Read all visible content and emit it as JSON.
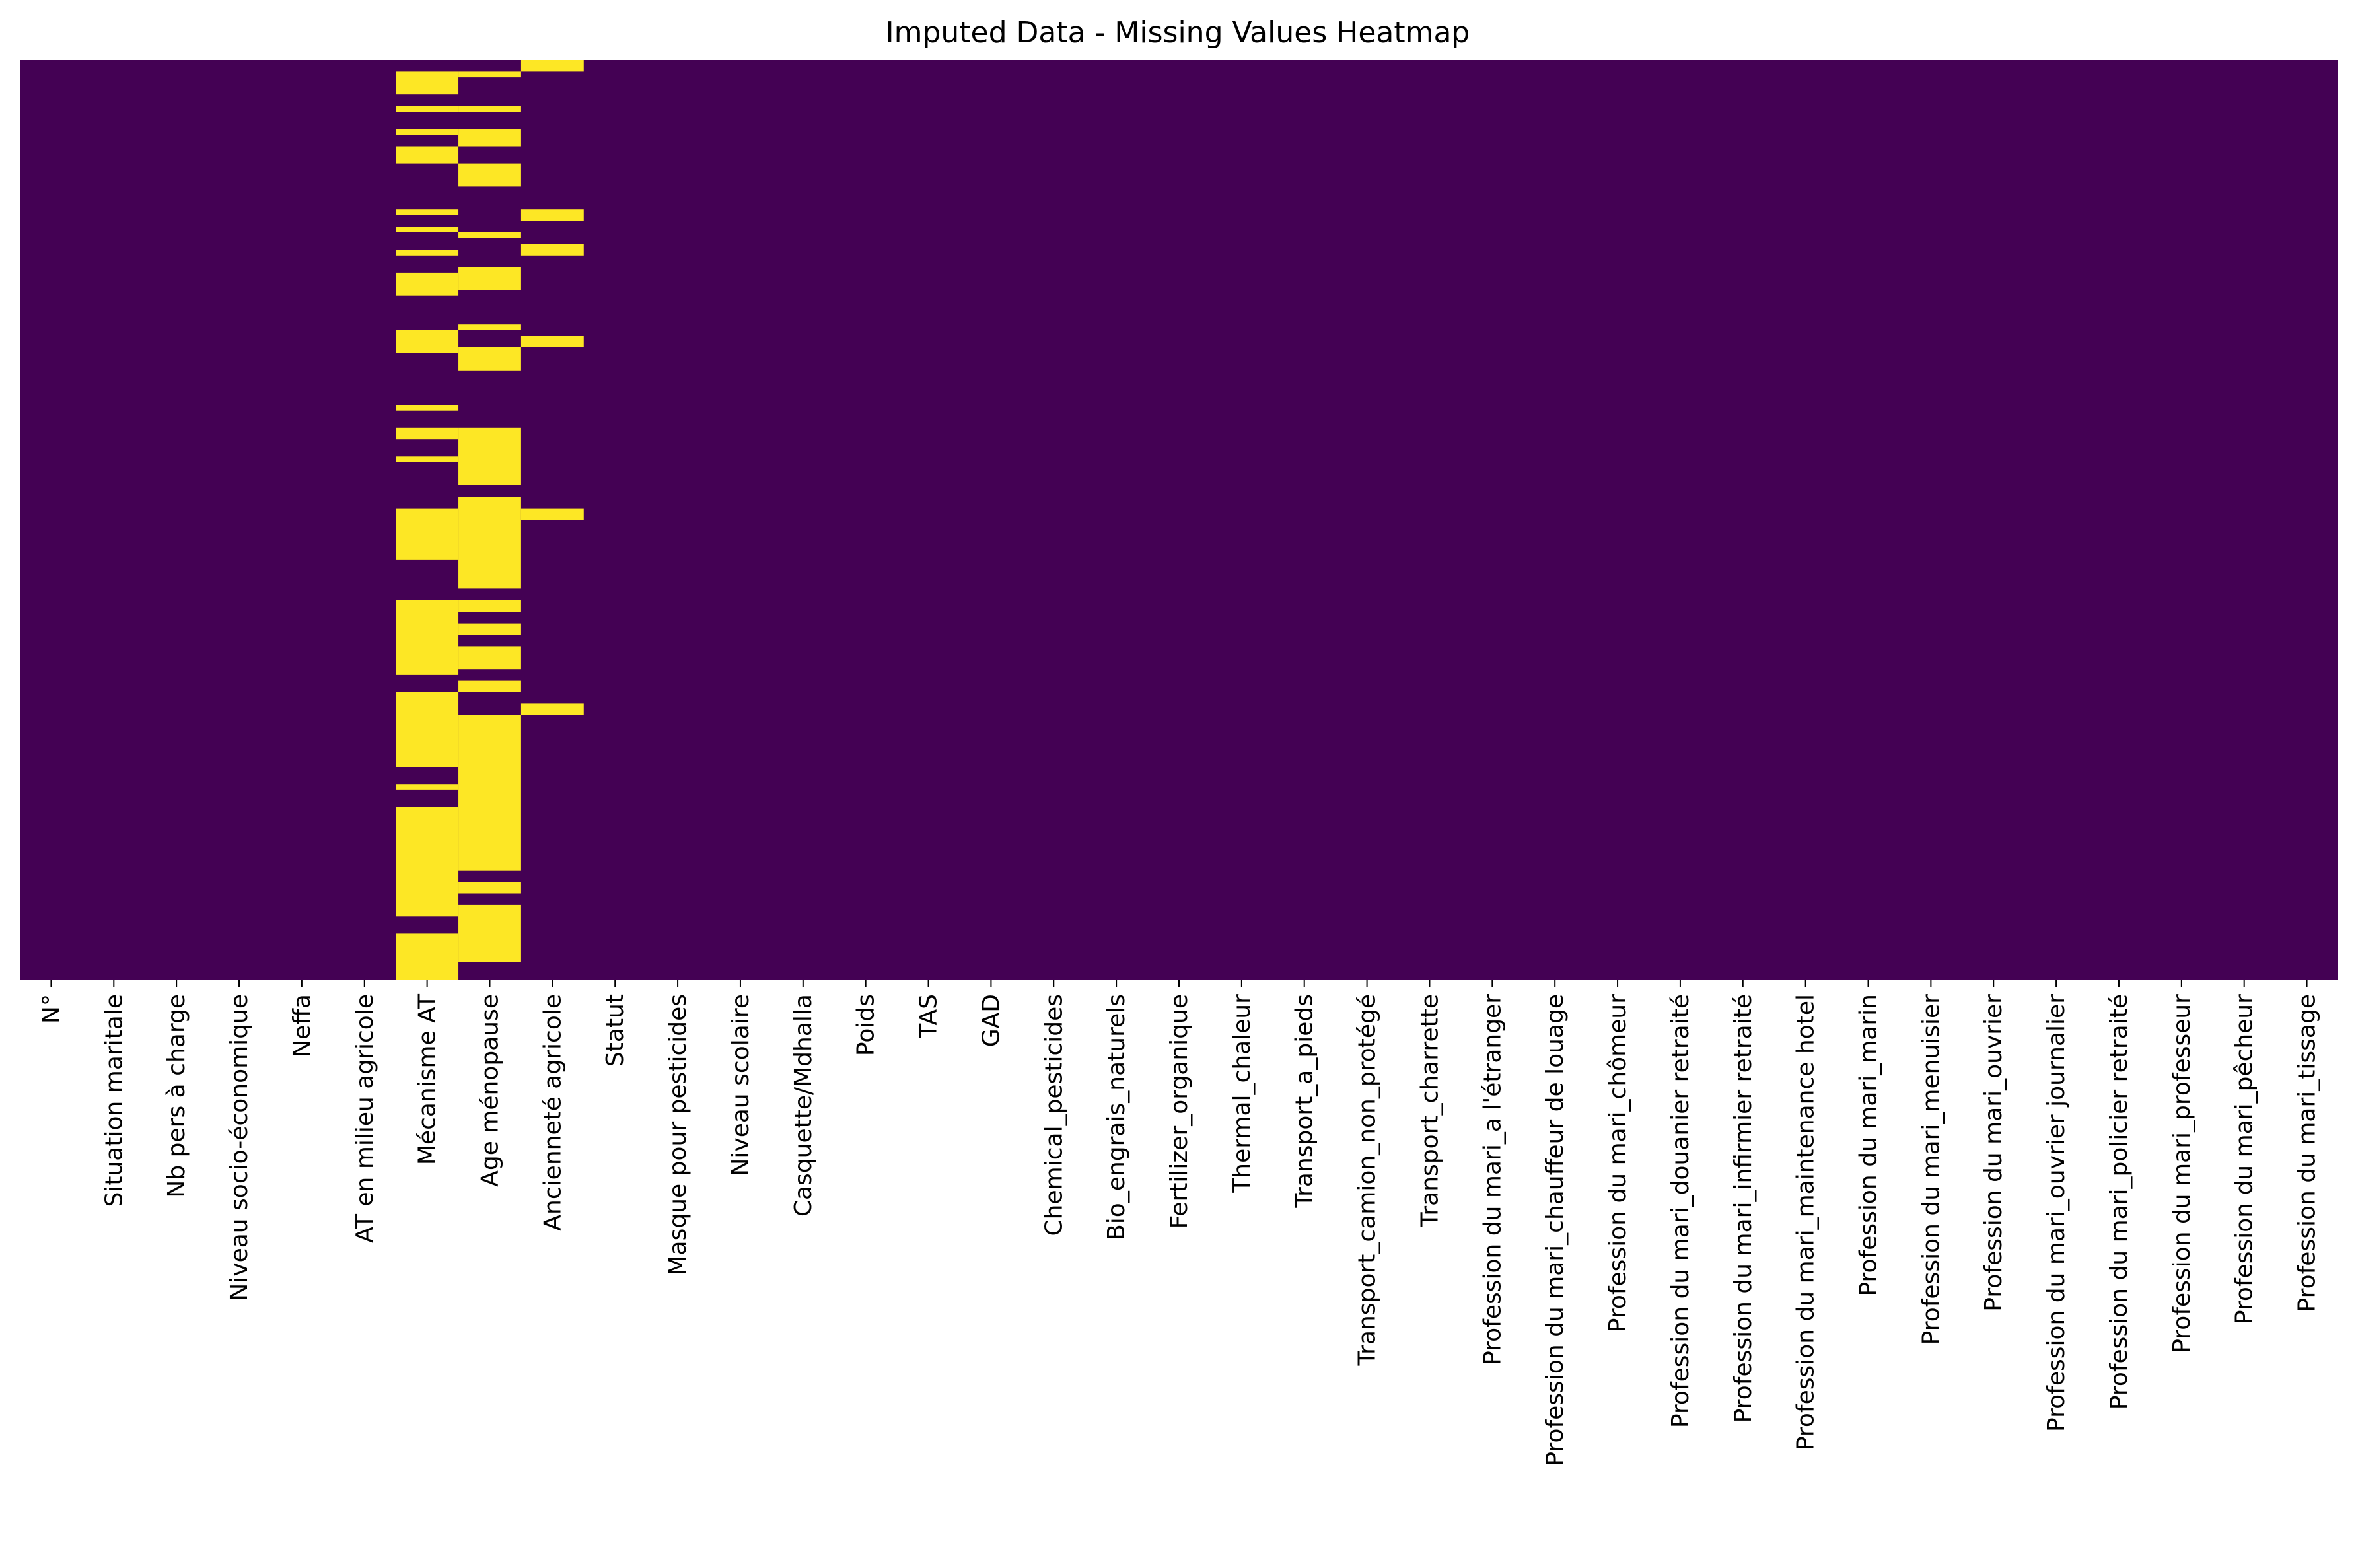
{
  "chart_data": {
    "type": "heatmap",
    "title": "Imputed Data - Missing Values Heatmap",
    "xlabel": "",
    "ylabel": "",
    "colormap": "viridis",
    "colors": {
      "present": "#440154",
      "missing": "#fde725"
    },
    "colorbar": false,
    "grid": false,
    "y_tick_labels": false,
    "n_rows": 160,
    "columns": [
      "N°",
      "Situation maritale",
      "Nb pers à charge",
      "Niveau socio-économique",
      "Neffa",
      "AT en milieu agricole",
      "Mécanisme AT",
      "Age ménopause",
      "Ancienneté agricole",
      "Statut",
      "Masque pour pesticides",
      "Niveau scolaire",
      "Casquette/Mdhalla",
      "Poids",
      "TAS",
      "GAD",
      "Chemical_pesticides",
      "Bio_engrais_naturels",
      "Fertilizer_organique",
      "Thermal_chaleur",
      "Transport_a_pieds",
      "Transport_camion_non_protégé",
      "Transport_charrette",
      "Profession du mari_a l'étranger",
      "Profession du mari_chauffeur de louage",
      "Profession du mari_chômeur",
      "Profession du mari_douanier retraité",
      "Profession du mari_infirmier retraité",
      "Profession du mari_maintenance hotel",
      "Profession du mari_marin",
      "Profession du mari_menuisier",
      "Profession du mari_ouvrier",
      "Profession du mari_ouvrier journalier",
      "Profession du mari_policier retraité",
      "Profession du mari_professeur",
      "Profession du mari_pêcheur",
      "Profession du mari_tissage"
    ],
    "missing_rows": {
      "Mécanisme AT": [
        [
          2,
          6
        ],
        [
          8,
          9
        ],
        [
          12,
          13
        ],
        [
          15,
          18
        ],
        [
          26,
          27
        ],
        [
          29,
          30
        ],
        [
          33,
          34
        ],
        [
          37,
          41
        ],
        [
          47,
          51
        ],
        [
          60,
          61
        ],
        [
          64,
          66
        ],
        [
          69,
          70
        ],
        [
          78,
          87
        ],
        [
          94,
          107
        ],
        [
          110,
          123
        ],
        [
          126,
          127
        ],
        [
          130,
          149
        ],
        [
          152,
          160
        ]
      ],
      "Age ménopause": [
        [
          2,
          3
        ],
        [
          8,
          9
        ],
        [
          12,
          15
        ],
        [
          18,
          22
        ],
        [
          30,
          31
        ],
        [
          36,
          40
        ],
        [
          46,
          47
        ],
        [
          50,
          54
        ],
        [
          64,
          74
        ],
        [
          76,
          92
        ],
        [
          94,
          96
        ],
        [
          98,
          100
        ],
        [
          102,
          106
        ],
        [
          108,
          110
        ],
        [
          114,
          141
        ],
        [
          143,
          145
        ],
        [
          147,
          157
        ]
      ],
      "Ancienneté agricole": [
        [
          0,
          2
        ],
        [
          26,
          28
        ],
        [
          32,
          34
        ],
        [
          48,
          50
        ],
        [
          78,
          80
        ],
        [
          112,
          114
        ]
      ]
    }
  }
}
